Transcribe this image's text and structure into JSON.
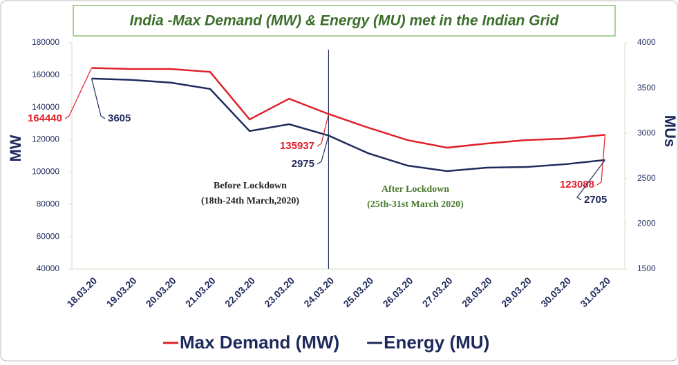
{
  "chart_data": {
    "type": "line",
    "title": "India -Max Demand (MW) & Energy (MU) met in the Indian Grid",
    "categories": [
      "18.03.20",
      "19.03.20",
      "20.03.20",
      "21.03.20",
      "22.03.20",
      "23.03.20",
      "24.03.20",
      "25.03.20",
      "26.03.20",
      "27.03.20",
      "28.03.20",
      "29.03.20",
      "30.03.20",
      "31.03.20"
    ],
    "series": [
      {
        "name": "Max Demand (MW)",
        "color": "#e0202a",
        "values": [
          164440,
          163800,
          163800,
          162000,
          132600,
          145400,
          135937,
          127500,
          119800,
          115100,
          117700,
          119800,
          120700,
          123088
        ]
      },
      {
        "name": "Energy (MU)",
        "color": "#1f2a5c",
        "axis": "y2",
        "values": [
          3605,
          3590,
          3560,
          3490,
          3025,
          3100,
          2975,
          2780,
          2643,
          2582,
          2620,
          2628,
          2659,
          2705
        ]
      }
    ],
    "ylabel": "MW",
    "y2label": "MUs",
    "ylim": [
      40000,
      180000
    ],
    "yticks": [
      40000,
      60000,
      80000,
      100000,
      120000,
      140000,
      160000,
      180000
    ],
    "y2lim": [
      1500,
      4000
    ],
    "y2ticks": [
      1500,
      2000,
      2500,
      3000,
      3500,
      4000
    ],
    "annotations": [
      "Before Lockdown",
      "(18th-24th March,2020)",
      "After Lockdown",
      "(25th-31st March 2020)"
    ],
    "legend": "bottom",
    "grid": false
  }
}
